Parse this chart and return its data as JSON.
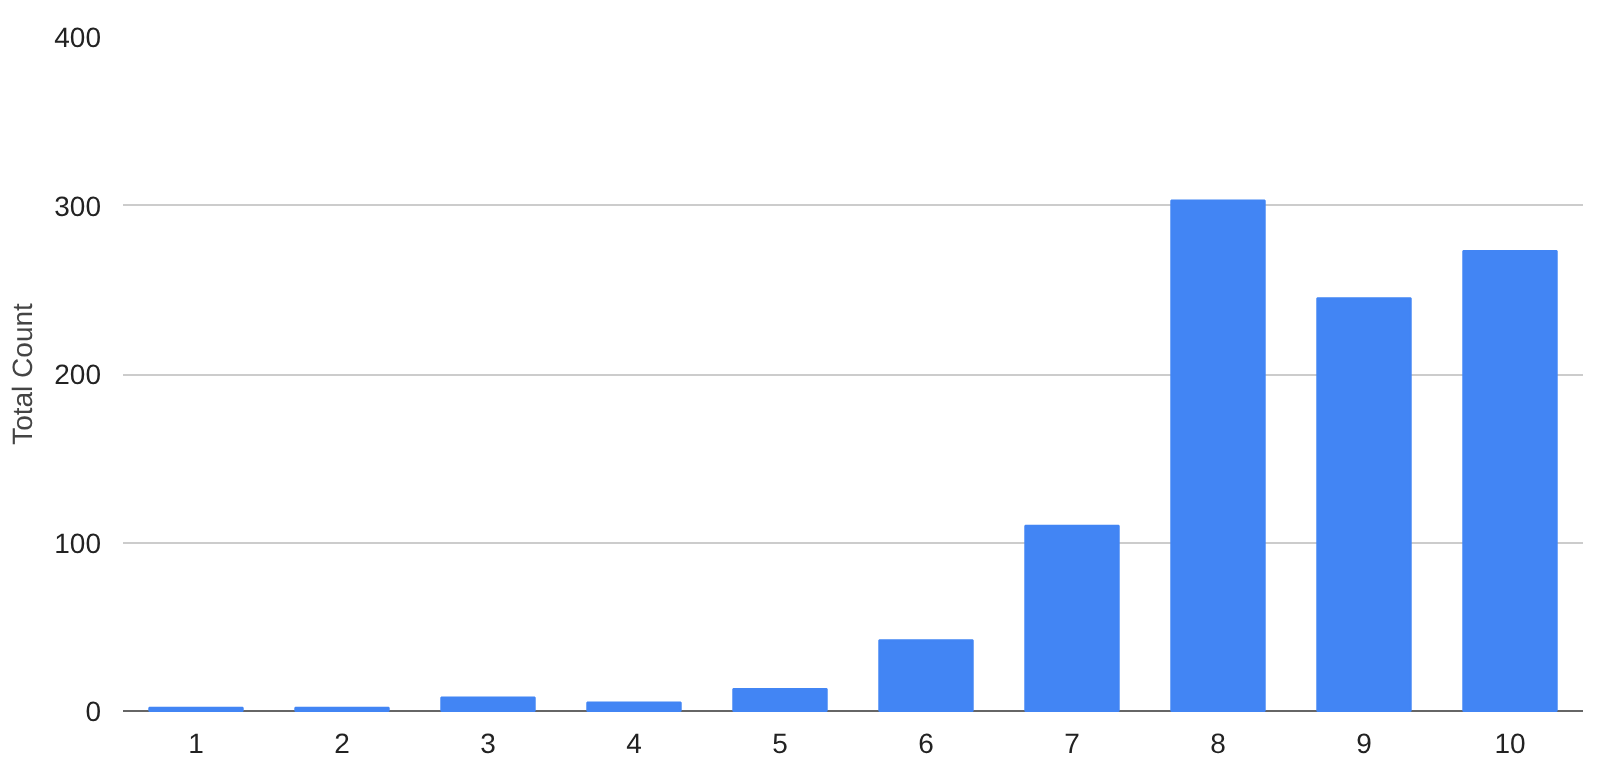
{
  "chart_data": {
    "type": "bar",
    "ylabel": "Total Count",
    "categories": [
      "1",
      "2",
      "3",
      "4",
      "5",
      "6",
      "7",
      "8",
      "9",
      "10"
    ],
    "values": [
      2,
      2,
      8,
      5,
      13,
      42,
      110,
      303,
      245,
      273
    ],
    "color": "#4285f4",
    "ylim": [
      0,
      400
    ],
    "yticks": [
      0,
      100,
      200,
      300,
      400
    ],
    "grid": "y"
  }
}
